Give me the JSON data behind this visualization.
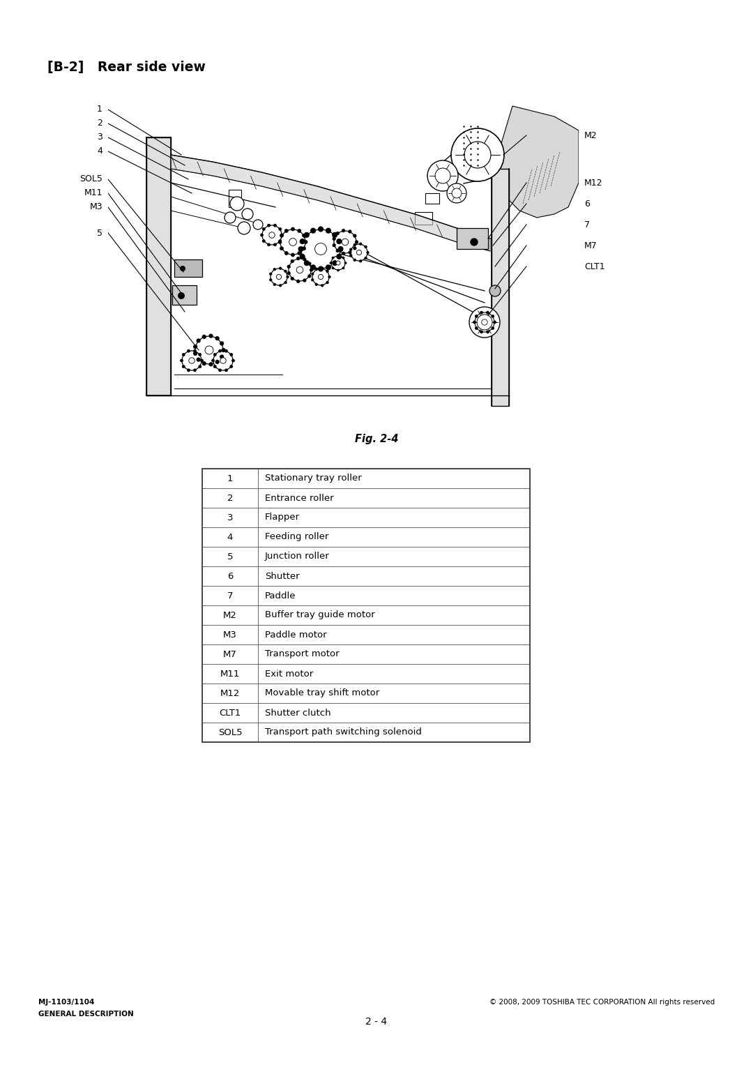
{
  "title": "[B-2]   Rear side view",
  "fig_label": "Fig. 2-4",
  "page_number": "2 - 4",
  "footer_left_line1": "MJ-1103/1104",
  "footer_left_line2": "GENERAL DESCRIPTION",
  "footer_right": "© 2008, 2009 TOSHIBA TEC CORPORATION All rights reserved",
  "table_data": [
    [
      "1",
      "Stationary tray roller"
    ],
    [
      "2",
      "Entrance roller"
    ],
    [
      "3",
      "Flapper"
    ],
    [
      "4",
      "Feeding roller"
    ],
    [
      "5",
      "Junction roller"
    ],
    [
      "6",
      "Shutter"
    ],
    [
      "7",
      "Paddle"
    ],
    [
      "M2",
      "Buffer tray guide motor"
    ],
    [
      "M3",
      "Paddle motor"
    ],
    [
      "M7",
      "Transport motor"
    ],
    [
      "M11",
      "Exit motor"
    ],
    [
      "M12",
      "Movable tray shift motor"
    ],
    [
      "CLT1",
      "Shutter clutch"
    ],
    [
      "SOL5",
      "Transport path switching solenoid"
    ]
  ],
  "bg_color": "#ffffff",
  "text_color": "#000000"
}
